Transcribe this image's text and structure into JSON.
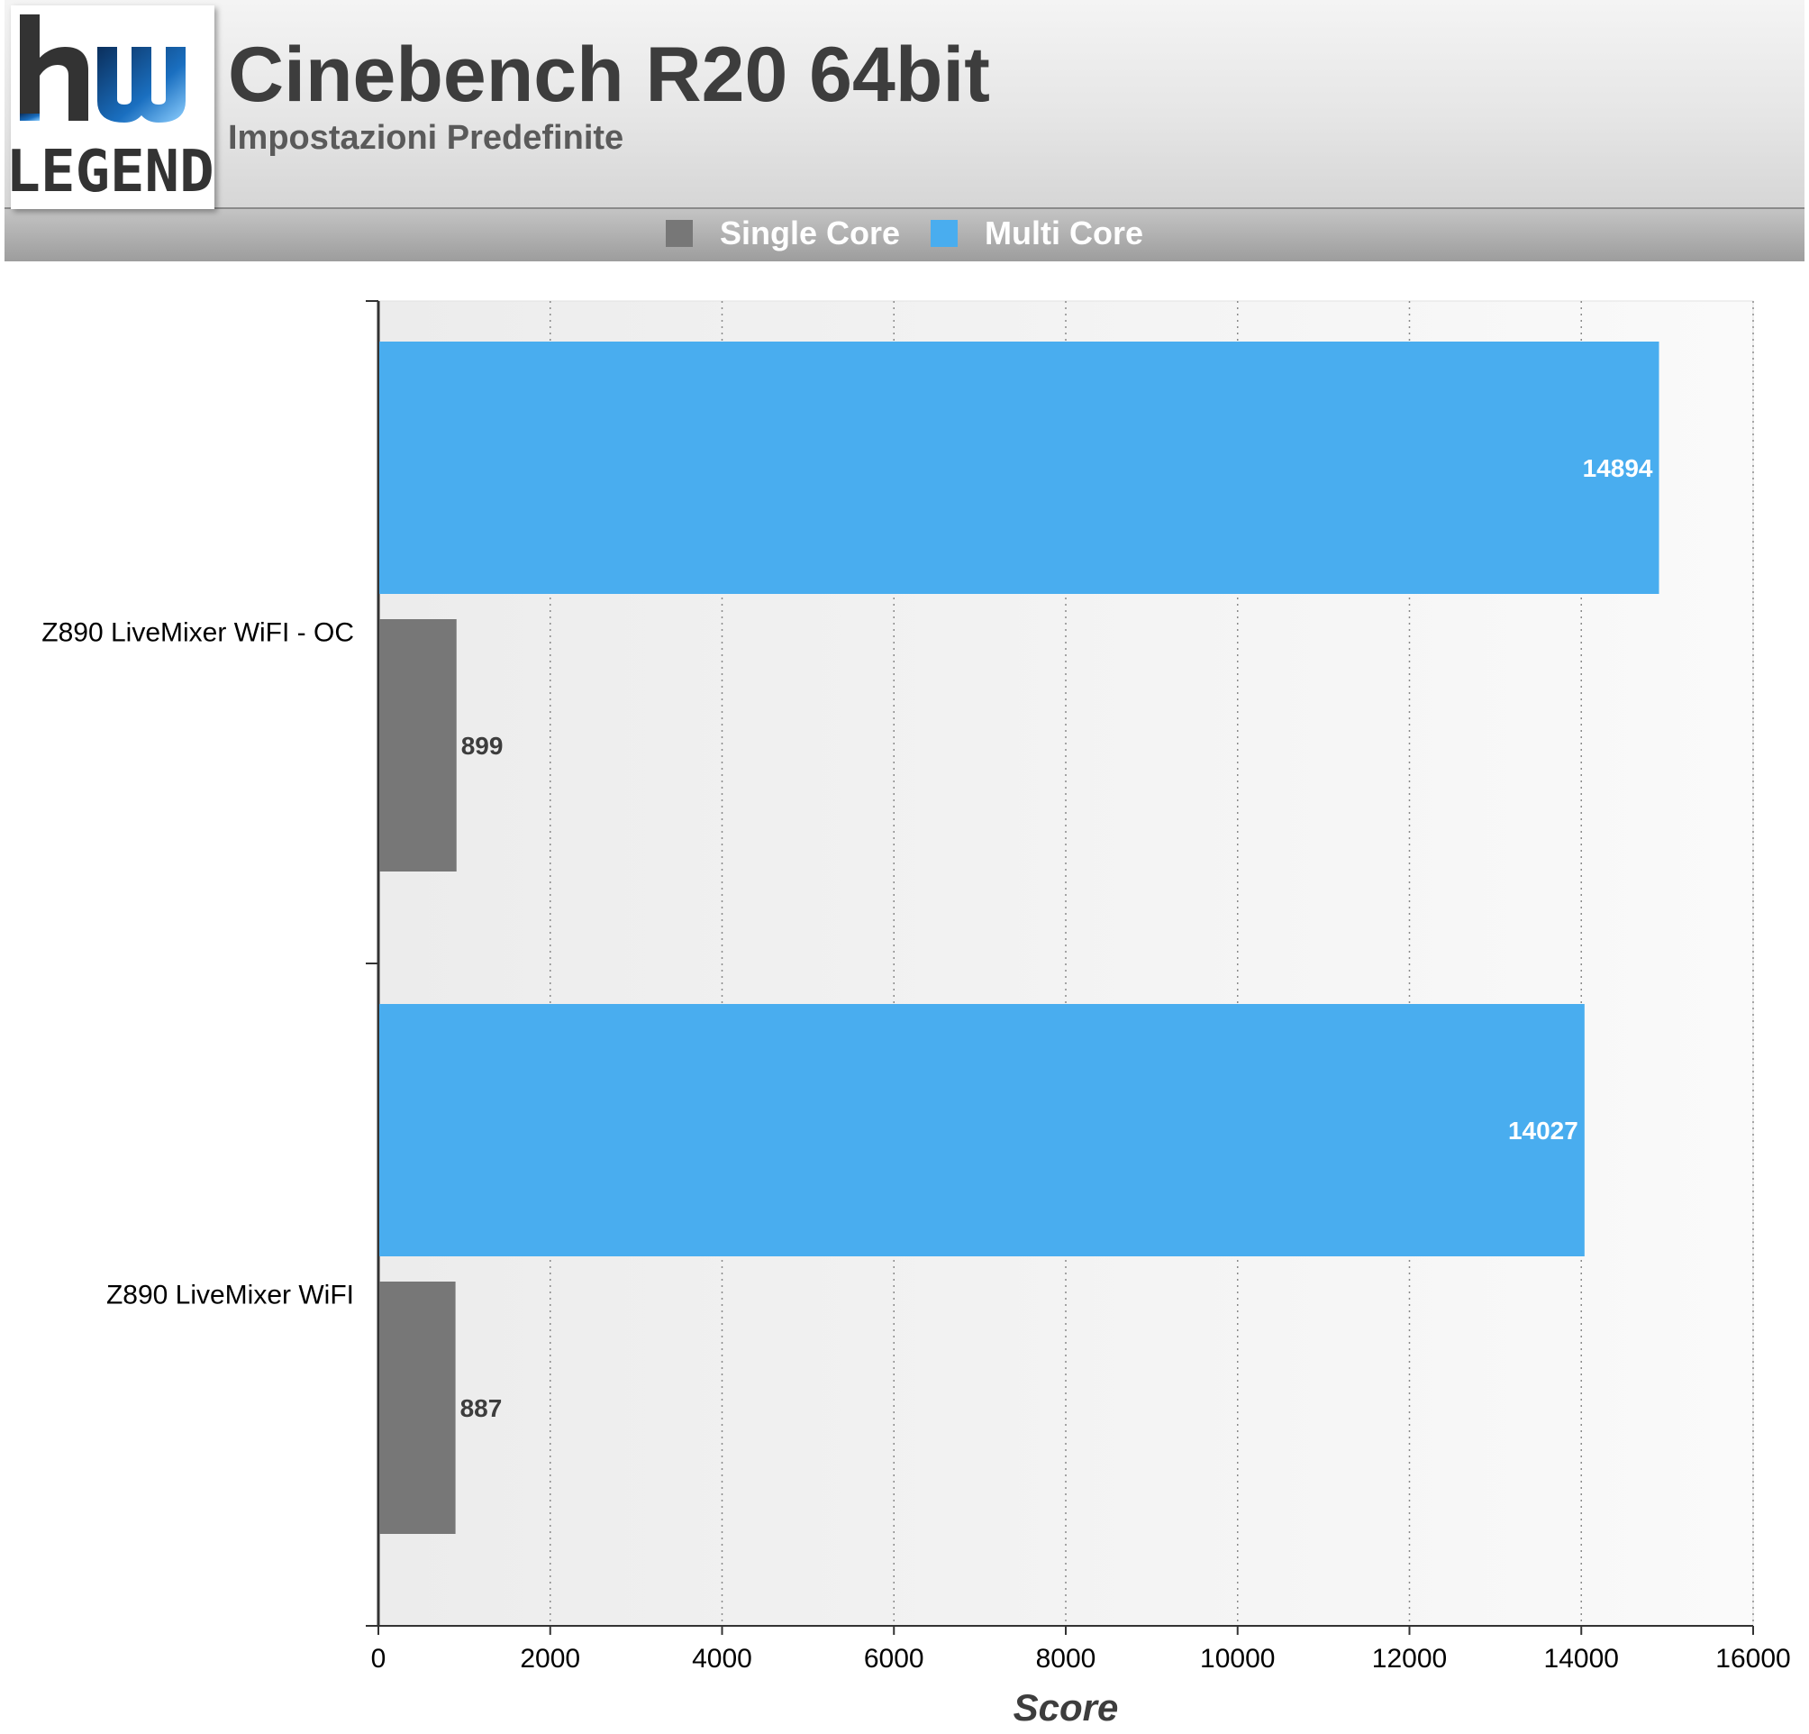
{
  "header": {
    "logo_text_top": "hw",
    "logo_text_bottom": "LEGEND",
    "title": "Cinebench R20 64bit",
    "subtitle": "Impostazioni Predefinite"
  },
  "colors": {
    "single_core": "#777777",
    "multi_core": "#49adef",
    "plot_background": "#f3f3f3"
  },
  "chart_data": {
    "type": "bar",
    "orientation": "horizontal",
    "title": "Cinebench R20 64bit",
    "subtitle": "Impostazioni Predefinite",
    "categories": [
      "Z890 LiveMixer WiFI - OC",
      "Z890 LiveMixer WiFI"
    ],
    "series": [
      {
        "name": "Single Core",
        "color": "#777777",
        "values": [
          899,
          887
        ]
      },
      {
        "name": "Multi Core",
        "color": "#49adef",
        "values": [
          14894,
          14027
        ]
      }
    ],
    "xlabel": "Score",
    "ylabel": "",
    "xlim": [
      0,
      16000
    ],
    "xticks": [
      0,
      2000,
      4000,
      6000,
      8000,
      10000,
      12000,
      14000,
      16000
    ],
    "grid": "vertical dotted",
    "legend_position": "top-center"
  }
}
